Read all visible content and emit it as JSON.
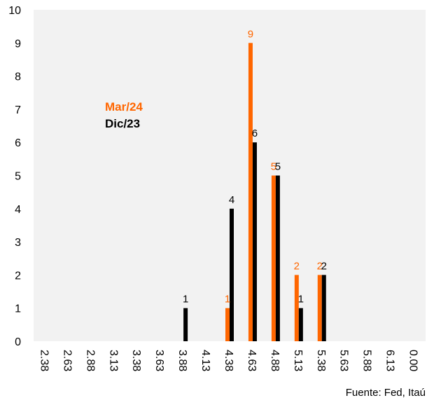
{
  "chart_data": {
    "type": "bar",
    "categories": [
      "2.38",
      "2.63",
      "2.88",
      "3.13",
      "3.38",
      "3.63",
      "3.88",
      "4.13",
      "4.38",
      "4.63",
      "4.88",
      "5.13",
      "5.38",
      "5.63",
      "5.88",
      "6.13",
      "0.00"
    ],
    "series": [
      {
        "name": "Mar/24",
        "color": "#FF6600",
        "values": [
          0,
          0,
          0,
          0,
          0,
          0,
          0,
          0,
          1,
          9,
          5,
          2,
          2,
          0,
          0,
          0,
          0
        ]
      },
      {
        "name": "Dic/23",
        "color": "#000000",
        "values": [
          0,
          0,
          0,
          0,
          0,
          0,
          1,
          0,
          4,
          6,
          5,
          1,
          2,
          0,
          0,
          0,
          0
        ]
      }
    ],
    "ylim": [
      0,
      10
    ],
    "yticks": [
      0,
      1,
      2,
      3,
      4,
      5,
      6,
      7,
      8,
      9,
      10
    ],
    "legend_position": "upper-left",
    "plot_background": "#F2F2F2",
    "grid": false,
    "source": "Fuente: Fed, Itaú"
  }
}
